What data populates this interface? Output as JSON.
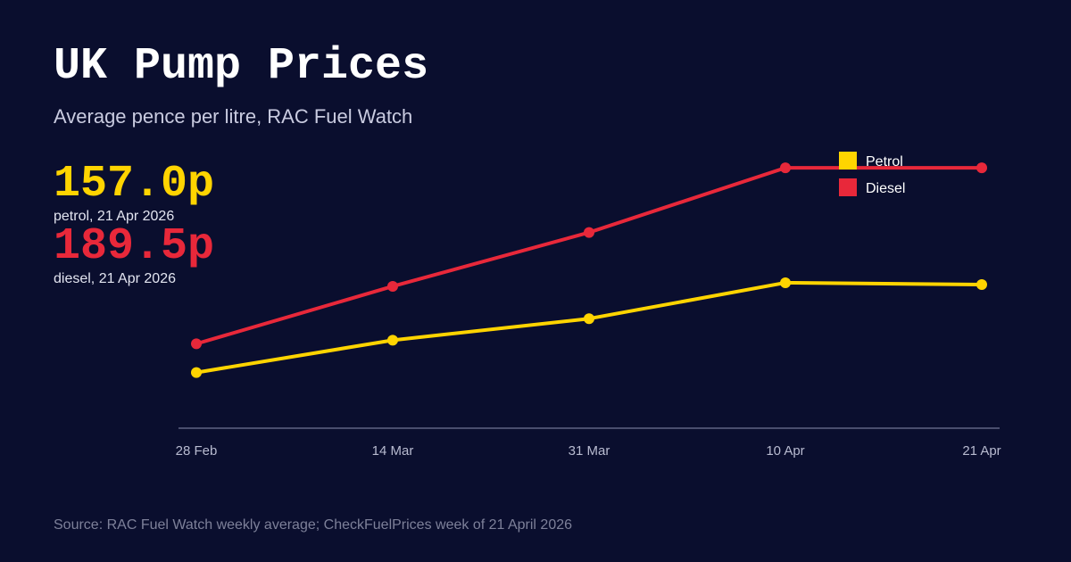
{
  "header": {
    "title": "UK Pump Prices",
    "subtitle": "Average pence per litre, RAC Fuel Watch"
  },
  "stats": {
    "petrol_value": "157.0p",
    "petrol_label": "petrol, 21 Apr 2026",
    "diesel_value": "189.5p",
    "diesel_label": "diesel, 21 Apr 2026"
  },
  "source": "Source: RAC Fuel Watch weekly average; CheckFuelPrices week of 21 April 2026",
  "colors": {
    "background": "#0a0e2e",
    "petrol": "#ffd400",
    "diesel": "#e8283a",
    "axis": "#4a4e6e"
  },
  "chart_data": {
    "type": "line",
    "title": "UK Pump Prices",
    "subtitle": "Average pence per litre, RAC Fuel Watch",
    "xlabel": "",
    "ylabel": "",
    "categories": [
      "28 Feb",
      "14 Mar",
      "31 Mar",
      "10 Apr",
      "21 Apr"
    ],
    "series": [
      {
        "name": "Petrol",
        "color": "#ffd400",
        "values": [
          132.5,
          141.5,
          147.5,
          157.5,
          157.0
        ]
      },
      {
        "name": "Diesel",
        "color": "#e8283a",
        "values": [
          140.5,
          156.5,
          171.5,
          189.5,
          189.5
        ]
      }
    ],
    "ylim": [
      117.0,
      194.0
    ],
    "grid": false,
    "legend": "top-right"
  }
}
